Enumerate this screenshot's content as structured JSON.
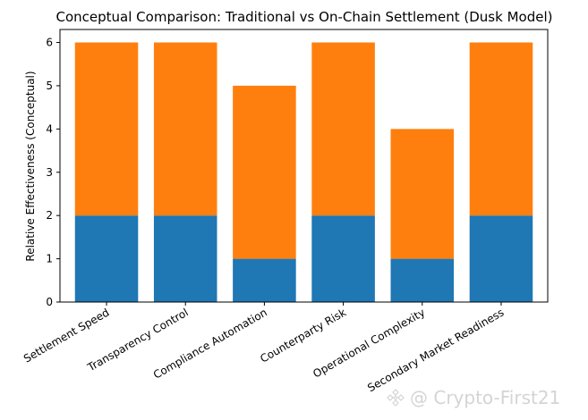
{
  "chart_data": {
    "type": "bar",
    "stacked": true,
    "title": "Conceptual Comparison: Traditional vs On-Chain Settlement (Dusk Model)",
    "xlabel": "",
    "ylabel": "Relative Effectiveness (Conceptual)",
    "categories": [
      "Settlement Speed",
      "Transparency Control",
      "Compliance Automation",
      "Counterparty Risk",
      "Operational Complexity",
      "Secondary Market Readiness"
    ],
    "series": [
      {
        "values": [
          2,
          2,
          1,
          2,
          1,
          2
        ],
        "color": "#1f77b4"
      },
      {
        "values": [
          4,
          4,
          4,
          4,
          3,
          4
        ],
        "color": "#ff7f0e"
      }
    ],
    "ylim": [
      0,
      6.3
    ],
    "yticks": [
      0,
      1,
      2,
      3,
      4,
      5,
      6
    ],
    "grid": false,
    "legend": "none"
  },
  "watermark": {
    "text": "@ Crypto-First21",
    "icon": "binance-square-logo"
  }
}
